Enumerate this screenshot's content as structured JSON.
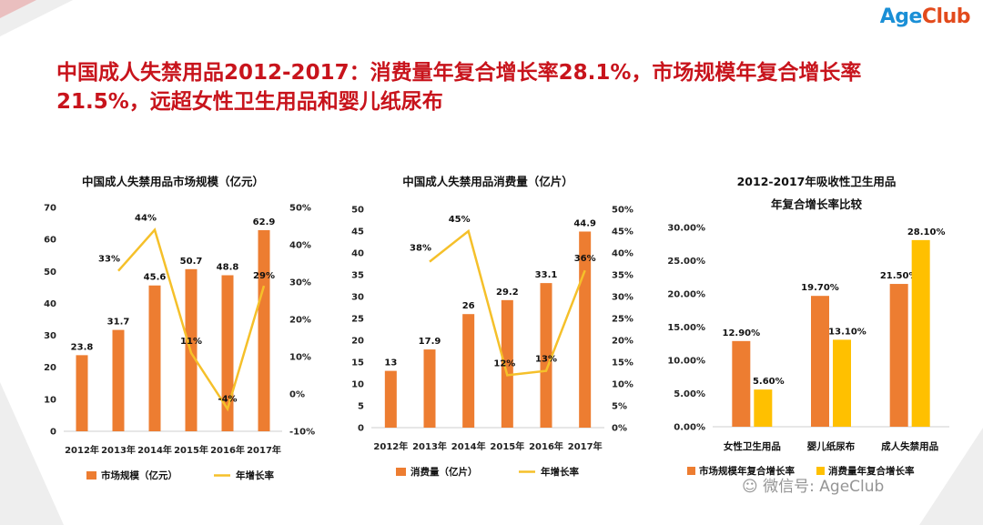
{
  "logo": {
    "part1": "Age",
    "part2": "Club"
  },
  "headline": "中国成人失禁用品2012-2017：消费量年复合增长率28.1%，市场规模年复合增长率21.5%，远超女性卫生用品和婴儿纸尿布",
  "watermark": "微信号: AgeClub",
  "colors": {
    "bar_orange": "#ed7d31",
    "line_yellow": "#f5c02a",
    "bar_yellow": "#ffc000",
    "headline_red": "#c8141c"
  },
  "chart_data": [
    {
      "type": "bar",
      "title": "中国成人失禁用品市场规模（亿元）",
      "categories": [
        "2012年",
        "2013年",
        "2014年",
        "2015年",
        "2016年",
        "2017年"
      ],
      "series": [
        {
          "name": "市场规模（亿元）",
          "type": "bar",
          "axis": "left",
          "values": [
            23.8,
            31.7,
            45.6,
            50.7,
            48.8,
            62.9
          ],
          "labels": [
            "23.8",
            "31.7",
            "45.6",
            "50.7",
            "48.8",
            "62.9"
          ]
        },
        {
          "name": "年增长率",
          "type": "line",
          "axis": "right",
          "values": [
            null,
            33,
            44,
            11,
            -4,
            29
          ],
          "labels": [
            "",
            "33%",
            "44%",
            "11%",
            "-4%",
            "29%"
          ]
        }
      ],
      "y_left": {
        "min": 0,
        "max": 70,
        "ticks": [
          "0",
          "10",
          "20",
          "30",
          "40",
          "50",
          "60",
          "70"
        ]
      },
      "y_right": {
        "min": -10,
        "max": 50,
        "ticks": [
          "-10%",
          "0%",
          "10%",
          "20%",
          "30%",
          "40%",
          "50%"
        ]
      },
      "grid": false,
      "legend": "bottom"
    },
    {
      "type": "bar",
      "title": "中国成人失禁用品消费量（亿片）",
      "categories": [
        "2012年",
        "2013年",
        "2014年",
        "2015年",
        "2016年",
        "2017年"
      ],
      "series": [
        {
          "name": "消费量（亿片）",
          "type": "bar",
          "axis": "left",
          "values": [
            13,
            17.9,
            26,
            29.2,
            33.1,
            44.9
          ],
          "labels": [
            "13",
            "17.9",
            "26",
            "29.2",
            "33.1",
            "44.9"
          ]
        },
        {
          "name": "年增长率",
          "type": "line",
          "axis": "right",
          "values": [
            null,
            38,
            45,
            12,
            13,
            36
          ],
          "labels": [
            "",
            "38%",
            "45%",
            "12%",
            "13%",
            "36%"
          ]
        }
      ],
      "y_left": {
        "min": 0,
        "max": 50,
        "ticks": [
          "0",
          "5",
          "10",
          "15",
          "20",
          "25",
          "30",
          "35",
          "40",
          "45",
          "50"
        ]
      },
      "y_right": {
        "min": 0,
        "max": 50,
        "ticks": [
          "0%",
          "5%",
          "10%",
          "15%",
          "20%",
          "25%",
          "30%",
          "35%",
          "40%",
          "45%",
          "50%"
        ]
      },
      "grid": false,
      "legend": "bottom"
    },
    {
      "type": "bar",
      "title": "2012-2017年吸收性卫生用品",
      "subtitle": "年复合增长率比较",
      "categories": [
        "女性卫生用品",
        "婴儿纸尿布",
        "成人失禁用品"
      ],
      "series": [
        {
          "name": "市场规模年复合增长率",
          "values": [
            12.9,
            19.7,
            21.5
          ],
          "labels": [
            "12.90%",
            "19.70%",
            "21.50%"
          ]
        },
        {
          "name": "消费量年复合增长率",
          "values": [
            5.6,
            13.1,
            28.1
          ],
          "labels": [
            "5.60%",
            "13.10%",
            "28.10%"
          ]
        }
      ],
      "y_left": {
        "min": 0,
        "max": 30,
        "ticks": [
          "0.00%",
          "5.00%",
          "10.00%",
          "15.00%",
          "20.00%",
          "25.00%",
          "30.00%"
        ]
      },
      "grid": false,
      "legend": "bottom"
    }
  ]
}
